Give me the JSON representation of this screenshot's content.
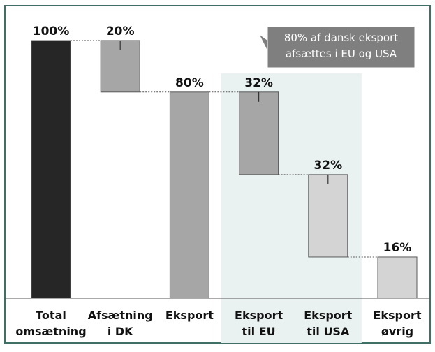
{
  "chart_data": {
    "type": "bar",
    "subtype": "waterfall",
    "title": "",
    "xlabel": "",
    "ylabel": "",
    "ylim": [
      0,
      100
    ],
    "grid": false,
    "categories": [
      [
        "Total",
        "omsætning"
      ],
      [
        "Afsætning",
        "i DK"
      ],
      [
        "Eksport"
      ],
      [
        "Eksport",
        "til EU"
      ],
      [
        "Eksport",
        "til USA"
      ],
      [
        "Eksport",
        "øvrig"
      ]
    ],
    "bars": [
      {
        "value": 100,
        "base": 0,
        "label": "100%",
        "kind": "total",
        "color": "#262626"
      },
      {
        "value": 20,
        "base": 80,
        "label": "20%",
        "kind": "step",
        "color": "#a6a6a6"
      },
      {
        "value": 80,
        "base": 0,
        "label": "80%",
        "kind": "total",
        "color": "#a6a6a6"
      },
      {
        "value": 32,
        "base": 48,
        "label": "32%",
        "kind": "step",
        "color": "#a6a6a6"
      },
      {
        "value": 32,
        "base": 16,
        "label": "32%",
        "kind": "step",
        "color": "#d4d4d4"
      },
      {
        "value": 16,
        "base": 0,
        "label": "16%",
        "kind": "step",
        "color": "#d4d4d4"
      }
    ],
    "highlight": {
      "from_index": 3,
      "to_index": 4,
      "color": "#e9f1f1"
    },
    "annotation": {
      "lines": [
        "80% af dansk eksport",
        "afsættes i EU og USA"
      ],
      "color": "#7f7f7f"
    },
    "frame_color": "#3f6f66"
  }
}
